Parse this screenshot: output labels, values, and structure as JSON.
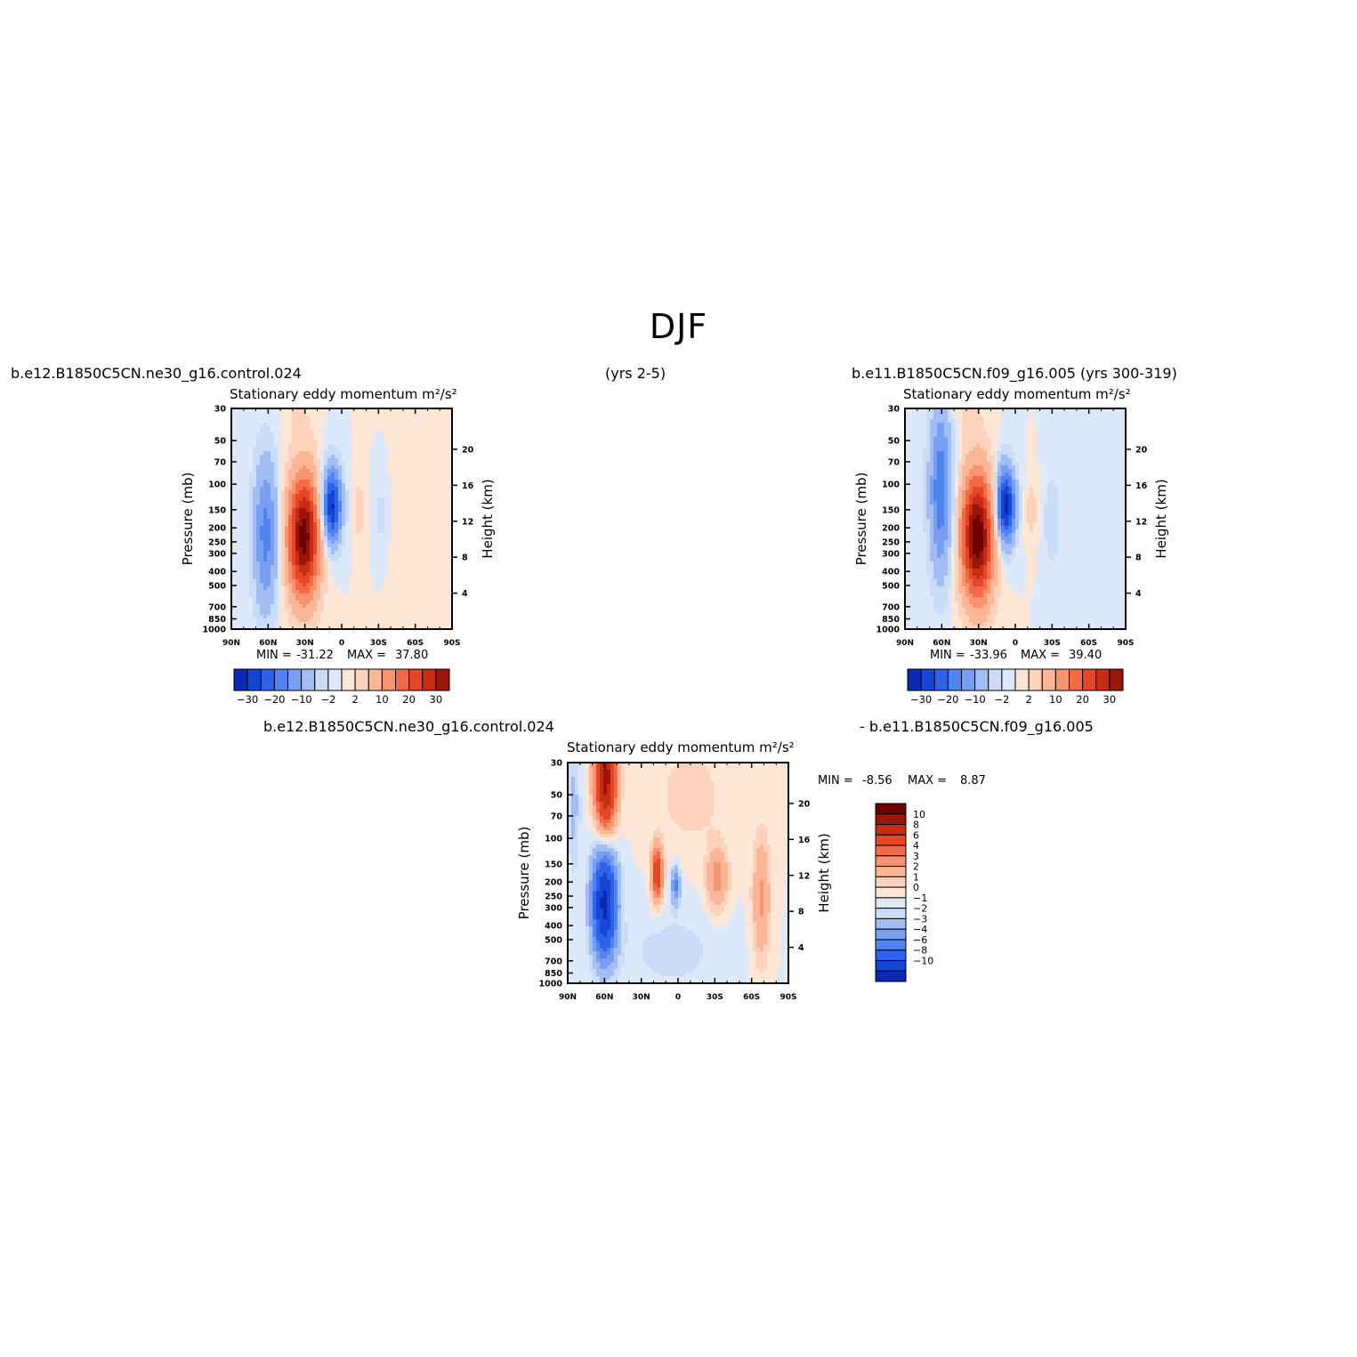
{
  "figure_title": "DJF",
  "headers": {
    "left_case": "b.e12.B1850C5CN.ne30_g16.control.024",
    "center_years": "(yrs 2-5)",
    "right_case": "b.e11.B1850C5CN.f09_g16.005 (yrs 300-319)",
    "diff_left": "b.e12.B1850C5CN.ne30_g16.control.024",
    "diff_right": "- b.e11.B1850C5CN.f09_g16.005"
  },
  "colors": {
    "cool": [
      "#08107a",
      "#0a2ab4",
      "#1546d6",
      "#2d63ea",
      "#4f83f0",
      "#789ef2",
      "#a2bdf4",
      "#cbdcf8",
      "#dde9fb"
    ],
    "warm": [
      "#fde6d6",
      "#fcd2bb",
      "#fbb697",
      "#f7946f",
      "#f26b46",
      "#e54726",
      "#c82c12",
      "#9b1508",
      "#700000"
    ]
  },
  "chart_data": [
    {
      "type": "heatmap",
      "title": "Stationary eddy momentum  m²/s²",
      "ylabel": "Pressure (mb)",
      "y2label": "Height (km)",
      "x_ticks": [
        "90N",
        "60N",
        "30N",
        "0",
        "30S",
        "60S",
        "90S"
      ],
      "y_ticks": [
        "30",
        "50",
        "70",
        "100",
        "150",
        "200",
        "250",
        "300",
        "400",
        "500",
        "700",
        "850",
        "1000"
      ],
      "y2_ticks": [
        "20",
        "16",
        "12",
        "8",
        "4"
      ],
      "min_label": "MIN =",
      "min": "-31.22",
      "max_label": "MAX =",
      "max": "37.80",
      "colorbar_labels": [
        "-30",
        "-20",
        "-10",
        "-2",
        "2",
        "10",
        "20",
        "30"
      ],
      "features": [
        {
          "lat": 62,
          "p": 220,
          "sx": 7,
          "sy": 0.85,
          "amp": -17
        },
        {
          "lat": 31,
          "p": 230,
          "sx": 9,
          "sy": 0.68,
          "amp": 37.8
        },
        {
          "lat": 8,
          "p": 140,
          "sx": 5.5,
          "sy": 0.42,
          "amp": -31.22
        },
        {
          "lat": -14,
          "p": 150,
          "sx": 3.5,
          "sy": 0.35,
          "amp": 3.5
        },
        {
          "lat": -32,
          "p": 165,
          "sx": 4,
          "sy": 0.5,
          "amp": -2.8
        },
        {
          "lat": 35,
          "p": 35,
          "sx": 7,
          "sy": 0.25,
          "amp": 2.4
        },
        {
          "lat": -70,
          "p": 250,
          "sx": 20,
          "sy": 1.2,
          "amp": 1.2
        }
      ]
    },
    {
      "type": "heatmap",
      "title": "Stationary eddy momentum  m²/s²",
      "ylabel": "Pressure (mb)",
      "y2label": "Height (km)",
      "x_ticks": [
        "90N",
        "60N",
        "30N",
        "0",
        "30S",
        "60S",
        "90S"
      ],
      "y_ticks": [
        "30",
        "50",
        "70",
        "100",
        "150",
        "200",
        "250",
        "300",
        "400",
        "500",
        "700",
        "850",
        "1000"
      ],
      "y2_ticks": [
        "20",
        "16",
        "12",
        "8",
        "4"
      ],
      "min_label": "MIN =",
      "min": "-33.96",
      "max_label": "MAX =",
      "max": "39.40",
      "colorbar_labels": [
        "-30",
        "-20",
        "-10",
        "-2",
        "2",
        "10",
        "20",
        "30"
      ],
      "features": [
        {
          "lat": 61,
          "p": 110,
          "sx": 6.5,
          "sy": 0.95,
          "amp": -19
        },
        {
          "lat": 31,
          "p": 230,
          "sx": 9,
          "sy": 0.7,
          "amp": 39.4
        },
        {
          "lat": 8,
          "p": 140,
          "sx": 5.5,
          "sy": 0.42,
          "amp": -33.96
        },
        {
          "lat": -13,
          "p": 150,
          "sx": 3.5,
          "sy": 0.35,
          "amp": 3.5
        },
        {
          "lat": -30,
          "p": 180,
          "sx": 5,
          "sy": 0.55,
          "amp": -4
        },
        {
          "lat": 38,
          "p": 35,
          "sx": 8,
          "sy": 0.25,
          "amp": 2.5
        }
      ]
    },
    {
      "type": "heatmap",
      "title": "Stationary eddy momentum  m²/s²",
      "ylabel": "Pressure (mb)",
      "y2label": "Height (km)",
      "x_ticks": [
        "90N",
        "60N",
        "30N",
        "0",
        "30S",
        "60S",
        "90S"
      ],
      "y_ticks": [
        "30",
        "50",
        "70",
        "100",
        "150",
        "200",
        "250",
        "300",
        "400",
        "500",
        "700",
        "850",
        "1000"
      ],
      "y2_ticks": [
        "20",
        "16",
        "12",
        "8",
        "4"
      ],
      "min_label": "MIN =",
      "min": "-8.56",
      "max_label": "MAX =",
      "max": "8.87",
      "colorbar_labels": [
        "10",
        "8",
        "6",
        "4",
        "3",
        "2",
        "1",
        "0",
        "-1",
        "-2",
        "-3",
        "-4",
        "-6",
        "-8",
        "-10"
      ],
      "features": [
        {
          "lat": 59,
          "p": 38,
          "sx": 6,
          "sy": 0.6,
          "amp": 8.87
        },
        {
          "lat": 60,
          "p": 280,
          "sx": 7,
          "sy": 0.6,
          "amp": -8.56
        },
        {
          "lat": 17,
          "p": 175,
          "sx": 3.2,
          "sy": 0.3,
          "amp": 5.5
        },
        {
          "lat": 2,
          "p": 210,
          "sx": 2.5,
          "sy": 0.2,
          "amp": -3.5
        },
        {
          "lat": -32,
          "p": 190,
          "sx": 6,
          "sy": 0.35,
          "amp": 2.5
        },
        {
          "lat": -68,
          "p": 260,
          "sx": 5,
          "sy": 0.7,
          "amp": 2.2
        },
        {
          "lat": -10,
          "p": 50,
          "sx": 20,
          "sy": 0.6,
          "amp": 0.8
        },
        {
          "lat": 85,
          "p": 60,
          "sx": 4,
          "sy": 0.8,
          "amp": -1.2
        },
        {
          "lat": 5,
          "p": 600,
          "sx": 30,
          "sy": 0.5,
          "amp": -0.7
        }
      ]
    }
  ]
}
